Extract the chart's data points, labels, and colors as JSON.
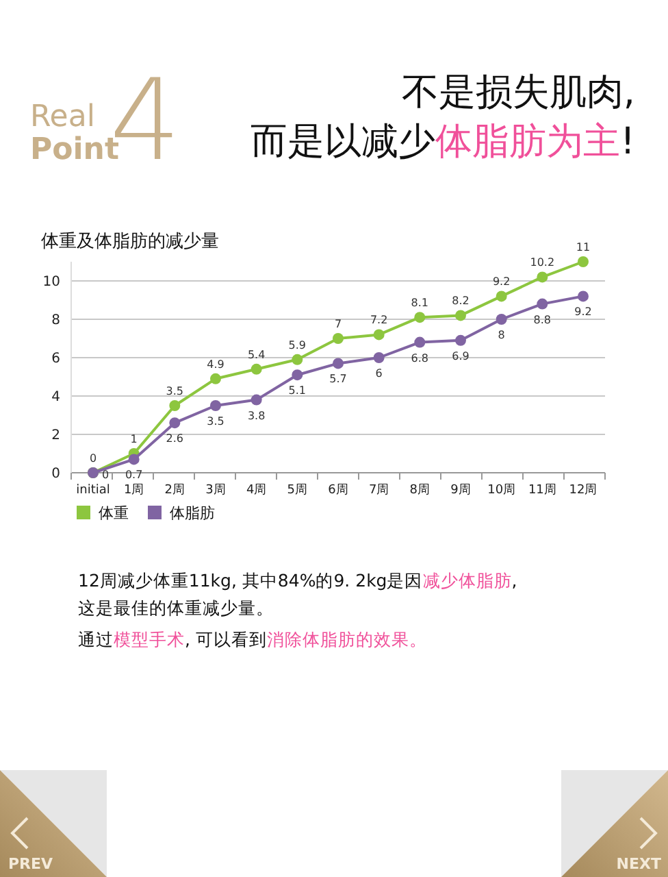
{
  "chart_data": {
    "type": "line",
    "title": "体重及体脂肪的减少量",
    "categories": [
      "initial",
      "1周",
      "2周",
      "3周",
      "4周",
      "5周",
      "6周",
      "7周",
      "8周",
      "9周",
      "10周",
      "11周",
      "12周"
    ],
    "series": [
      {
        "name": "体重",
        "color": "#8dc63f",
        "values": [
          0,
          1,
          3.5,
          4.9,
          5.4,
          5.9,
          7,
          7.2,
          8.1,
          8.2,
          9.2,
          10.2,
          11
        ]
      },
      {
        "name": "体脂肪",
        "color": "#8064a2",
        "values": [
          0,
          0.7,
          2.6,
          3.5,
          3.8,
          5.1,
          5.7,
          6,
          6.8,
          6.9,
          8,
          8.8,
          9.2
        ]
      }
    ],
    "ylim": [
      0,
      11
    ],
    "yticks": [
      0,
      2,
      4,
      6,
      8,
      10
    ],
    "grid": "y",
    "legend": "bottom left",
    "marker": "circle",
    "data_labels": true,
    "annotations": [
      "Real",
      "Point",
      "4",
      "不是损失肌肉,",
      "而是以减少",
      "体脂肪为主",
      "!",
      "12周减少体重11kg, 其中84%的9. 2kg是因",
      "减少体脂肪",
      ",",
      "这是最佳的体重减少量。",
      "通过",
      "模型手术",
      ", 可以看到",
      "消除体脂肪的效果。",
      "PREV",
      "NEXT"
    ]
  }
}
